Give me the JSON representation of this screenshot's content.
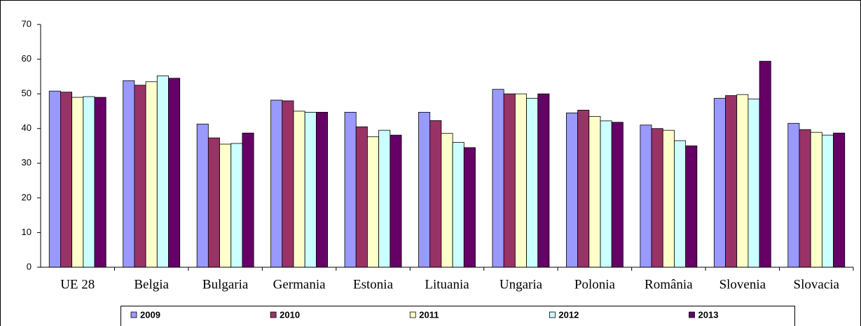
{
  "chart_data": {
    "type": "bar",
    "categories": [
      "UE 28",
      "Belgia",
      "Bulgaria",
      "Germania",
      "Estonia",
      "Lituania",
      "Ungaria",
      "Polonia",
      "România",
      "Slovenia",
      "Slovacia"
    ],
    "series": [
      {
        "name": "2009",
        "color": "#9999ff",
        "values": [
          50.8,
          53.8,
          41.3,
          48.2,
          44.7,
          44.7,
          51.3,
          44.5,
          41.0,
          48.7,
          41.5
        ]
      },
      {
        "name": "2010",
        "color": "#993366",
        "values": [
          50.5,
          52.5,
          37.3,
          48.0,
          40.5,
          42.3,
          50.0,
          45.3,
          40.0,
          49.5,
          39.7
        ]
      },
      {
        "name": "2011",
        "color": "#ffffcc",
        "values": [
          49.0,
          53.5,
          35.5,
          45.0,
          37.6,
          38.6,
          50.0,
          43.5,
          39.5,
          49.8,
          38.9
        ]
      },
      {
        "name": "2012",
        "color": "#ccffff",
        "values": [
          49.2,
          55.2,
          35.7,
          44.7,
          39.5,
          36.0,
          48.7,
          42.2,
          36.5,
          48.5,
          38.1
        ]
      },
      {
        "name": "2013",
        "color": "#660066",
        "values": [
          49.0,
          54.5,
          38.7,
          44.7,
          38.1,
          34.5,
          50.0,
          41.8,
          35.0,
          59.4,
          38.7
        ]
      }
    ],
    "ylim": [
      0,
      70
    ],
    "yticks": [
      0,
      10,
      20,
      30,
      40,
      50,
      60,
      70
    ],
    "legend": "bottom"
  }
}
